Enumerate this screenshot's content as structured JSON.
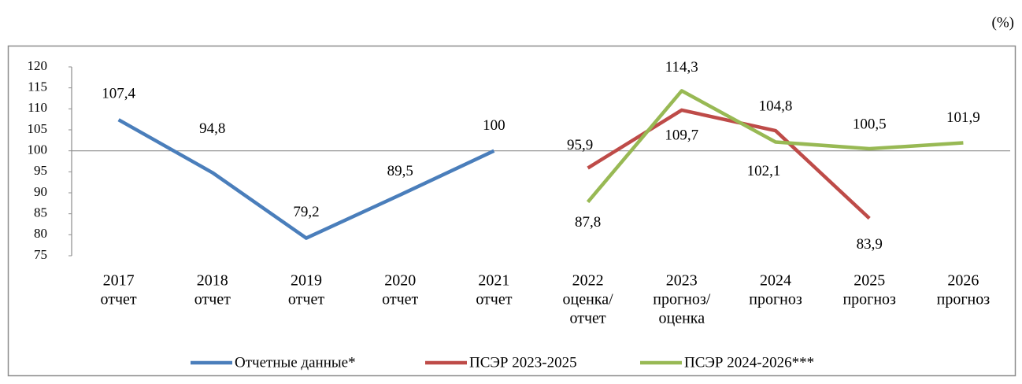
{
  "chart_data": {
    "type": "line",
    "unit_note": "(%)",
    "categories": [
      [
        "2017",
        "отчет"
      ],
      [
        "2018",
        "отчет"
      ],
      [
        "2019",
        "отчет"
      ],
      [
        "2020",
        "отчет"
      ],
      [
        "2021",
        "отчет"
      ],
      [
        "2022",
        "оценка/",
        "отчет"
      ],
      [
        "2023",
        "прогноз/",
        "оценка"
      ],
      [
        "2024",
        "прогноз"
      ],
      [
        "2025",
        "прогноз"
      ],
      [
        "2026",
        "прогноз"
      ]
    ],
    "series": [
      {
        "name": "Отчетные данные*",
        "color": "#4a7ebb",
        "values": [
          107.4,
          94.8,
          79.2,
          89.5,
          100,
          null,
          null,
          null,
          null,
          null
        ],
        "value_labels": [
          "107,4",
          "94,8",
          "79,2",
          "89,5",
          "100",
          null,
          null,
          null,
          null,
          null
        ]
      },
      {
        "name": "ПСЭР 2023-2025",
        "color": "#be4b48",
        "values": [
          null,
          null,
          null,
          null,
          null,
          95.9,
          109.7,
          104.8,
          83.9,
          null
        ],
        "value_labels": [
          null,
          null,
          null,
          null,
          null,
          "95,9",
          "109,7",
          "104,8",
          "83,9",
          null
        ]
      },
      {
        "name": "ПСЭР 2024-2026***",
        "color": "#98b954",
        "values": [
          null,
          null,
          null,
          null,
          null,
          87.8,
          114.3,
          102.1,
          100.5,
          101.9
        ],
        "value_labels": [
          null,
          null,
          null,
          null,
          null,
          "87,8",
          "114,3",
          "102,1",
          "100,5",
          "101,9"
        ]
      }
    ],
    "ylim": [
      75,
      120
    ],
    "yticks": [
      75,
      80,
      85,
      90,
      95,
      100,
      105,
      110,
      115,
      120
    ],
    "x_axis_at": 100,
    "grid": false,
    "legend": "bottom"
  }
}
